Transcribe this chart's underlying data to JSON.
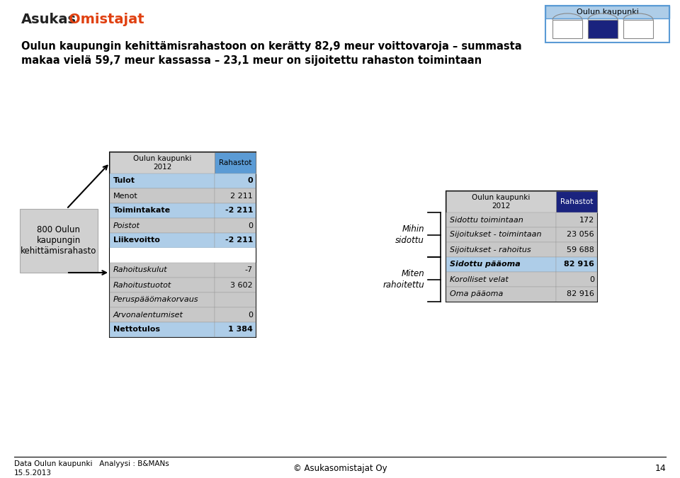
{
  "header_text_line1": "Oulun kaupungin kehittämisrahastoon on kerätty 82,9 meur voittovaroja – summasta",
  "header_text_line2": "makaa vielä 59,7 meur kassassa – 23,1 meur on sijoitettu rahaston toimintaan",
  "top_right_label": "Oulun kaupunki",
  "left_box_label": "800 Oulun\nkaupungin\nkehittämisrahasto",
  "left_table_header1": "Oulun kaupunki\n2012",
  "left_table_header2": "Rahastot",
  "right_table_header1": "Oulun kaupunki\n2012",
  "right_table_header2": "Rahastot",
  "left_rows": [
    {
      "label": "Tulot",
      "value": "0",
      "highlight": true,
      "italic": false
    },
    {
      "label": "Menot",
      "value": "2 211",
      "highlight": false,
      "italic": false
    },
    {
      "label": "Toimintakate",
      "value": "-2 211",
      "highlight": true,
      "italic": false
    },
    {
      "label": "Poistot",
      "value": "0",
      "highlight": false,
      "italic": true
    },
    {
      "label": "Liikevoitto",
      "value": "-2 211",
      "highlight": true,
      "italic": false
    },
    {
      "label": "",
      "value": "",
      "highlight": false,
      "italic": false
    },
    {
      "label": "Rahoituskulut",
      "value": "-7",
      "highlight": false,
      "italic": true
    },
    {
      "label": "Rahoitustuotot",
      "value": "3 602",
      "highlight": false,
      "italic": true
    },
    {
      "label": "Peruspääömakorvaus",
      "value": "",
      "highlight": false,
      "italic": true
    },
    {
      "label": "Arvonalentumiset",
      "value": "0",
      "highlight": false,
      "italic": true
    },
    {
      "label": "Nettotulos",
      "value": "1 384",
      "highlight": true,
      "italic": false
    }
  ],
  "mihin_sidottu_label": "Mihin\nsidottu",
  "miten_rahoitettu_label": "Miten\nrahoitettu",
  "right_rows": [
    {
      "label": "Sidottu toimintaan",
      "value": "172",
      "highlight": false,
      "italic": true
    },
    {
      "label": "Sijoitukset - toimintaan",
      "value": "23 056",
      "highlight": false,
      "italic": true
    },
    {
      "label": "Sijoitukset - rahoitus",
      "value": "59 688",
      "highlight": false,
      "italic": true
    },
    {
      "label": "Sidottu pääoma",
      "value": "82 916",
      "highlight": true,
      "italic": true
    },
    {
      "label": "Korolliset velat",
      "value": "0",
      "highlight": false,
      "italic": true
    },
    {
      "label": "Oma pääoma",
      "value": "82 916",
      "highlight": false,
      "italic": true
    }
  ],
  "footer_left1": "Data Oulun kaupunki   Analyysi : B&MANs",
  "footer_left2": "15.5.2013",
  "footer_center": "© Asukasomistajat Oy",
  "footer_page": "14",
  "bg_color": "#ffffff",
  "dark_blue": "#1a237e",
  "light_blue_row": "#aecde8",
  "gray_row": "#c8c8c8",
  "header_blue_left": "#5b9bd5",
  "header_gray": "#d0d0d0",
  "gap_color": "#ffffff"
}
